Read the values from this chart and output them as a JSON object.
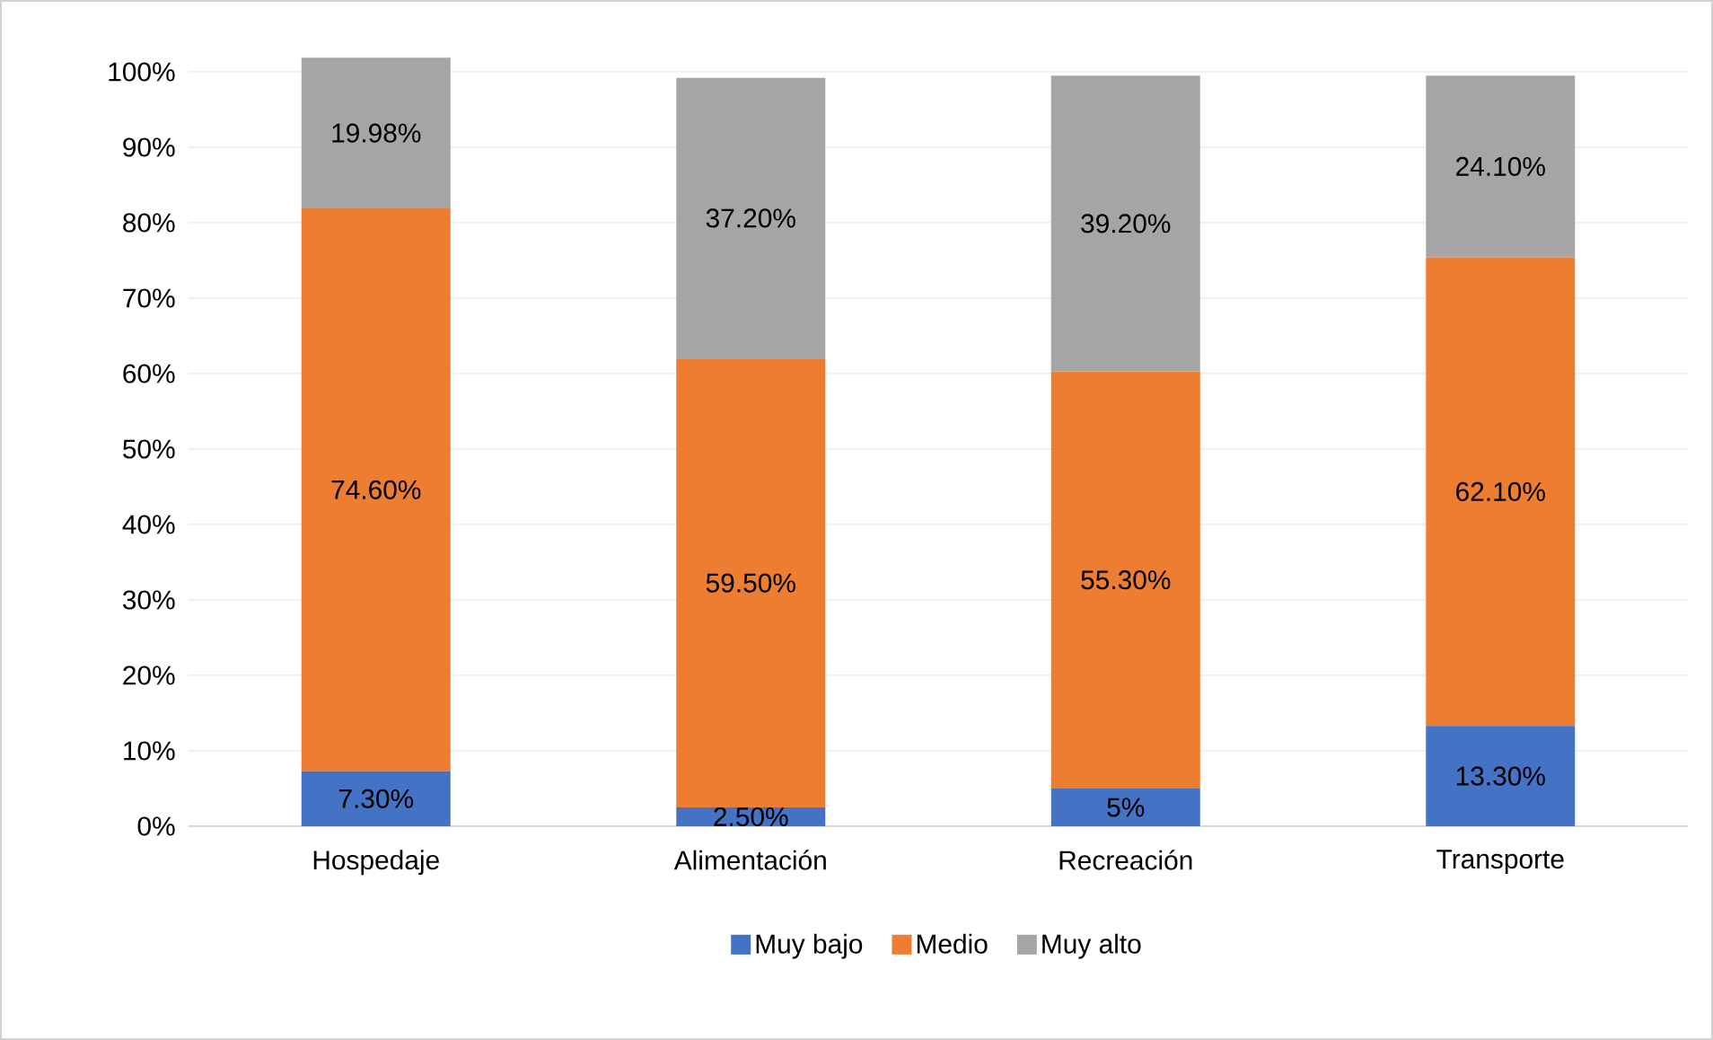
{
  "chart_data": {
    "type": "bar",
    "stacked": true,
    "categories": [
      "Hospedaje",
      "Alimentación",
      "Recreación",
      "Transporte"
    ],
    "series": [
      {
        "name": "Muy bajo",
        "color": "#4472c4",
        "values": [
          7.3,
          2.5,
          5,
          13.3
        ],
        "value_labels": [
          "7.30%",
          "2.50%",
          "5%",
          "13.30%"
        ]
      },
      {
        "name": "Medio",
        "color": "#ed7d31",
        "values": [
          74.6,
          59.5,
          55.3,
          62.1
        ],
        "value_labels": [
          "74.60%",
          "59.50%",
          "55.30%",
          "62.10%"
        ]
      },
      {
        "name": "Muy alto",
        "color": "#a5a5a5",
        "values": [
          19.98,
          37.2,
          39.2,
          24.1
        ],
        "value_labels": [
          "19.98%",
          "37.20%",
          "39.20%",
          "24.10%"
        ]
      }
    ],
    "ylim": [
      0,
      102
    ],
    "yticks": [
      {
        "value": 0,
        "label": "0%"
      },
      {
        "value": 10,
        "label": "10%"
      },
      {
        "value": 20,
        "label": "20%"
      },
      {
        "value": 30,
        "label": "30%"
      },
      {
        "value": 40,
        "label": "40%"
      },
      {
        "value": 50,
        "label": "50%"
      },
      {
        "value": 60,
        "label": "60%"
      },
      {
        "value": 70,
        "label": "70%"
      },
      {
        "value": 80,
        "label": "80%"
      },
      {
        "value": 90,
        "label": "90%"
      },
      {
        "value": 100,
        "label": "100%"
      }
    ],
    "grid": "y",
    "legend": "bottom"
  }
}
